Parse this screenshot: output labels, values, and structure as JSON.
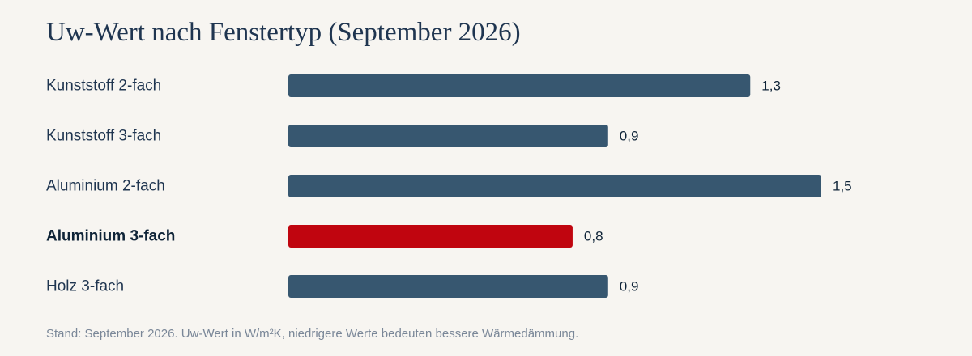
{
  "chart_data": {
    "type": "bar",
    "orientation": "horizontal",
    "title": "Uw-Wert nach Fenstertyp (September 2026)",
    "categories": [
      "Kunststoff 2-fach",
      "Kunststoff 3-fach",
      "Aluminium 2-fach",
      "Aluminium 3-fach",
      "Holz 3-fach"
    ],
    "values": [
      1.3,
      0.9,
      1.5,
      0.8,
      0.9
    ],
    "value_labels": [
      "1,3",
      "0,9",
      "1,5",
      "0,8",
      "0,9"
    ],
    "highlight_index": 3,
    "xlim": [
      0,
      1.5
    ],
    "grid": false,
    "legend": "none",
    "footnote": "Stand: September 2026. Uw-Wert in W/m²K, niedrigere Werte bedeuten bessere Wärmedämmung."
  },
  "colors": {
    "bar": "#375770",
    "highlight": "#c0050f",
    "text": "#1f3550"
  }
}
